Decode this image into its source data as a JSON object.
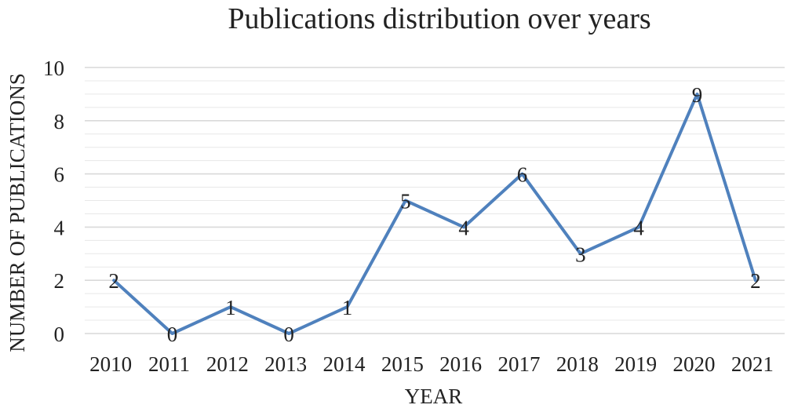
{
  "chart_data": {
    "type": "line",
    "title": "Publications distribution over years",
    "xlabel": "YEAR",
    "ylabel": "NUMBER OF PUBLICATIONS",
    "categories": [
      "2010",
      "2011",
      "2012",
      "2013",
      "2014",
      "2015",
      "2016",
      "2017",
      "2018",
      "2019",
      "2020",
      "2021"
    ],
    "series": [
      {
        "values": [
          2,
          0,
          1,
          0,
          1,
          5,
          4,
          6,
          3,
          4,
          9,
          2
        ],
        "color": "#4f81bd"
      }
    ],
    "ylim": [
      0,
      10
    ],
    "yticks": [
      0,
      2,
      4,
      6,
      8,
      10
    ],
    "grid": true,
    "gridColor": "#d9d9d9",
    "data_labels": true
  }
}
